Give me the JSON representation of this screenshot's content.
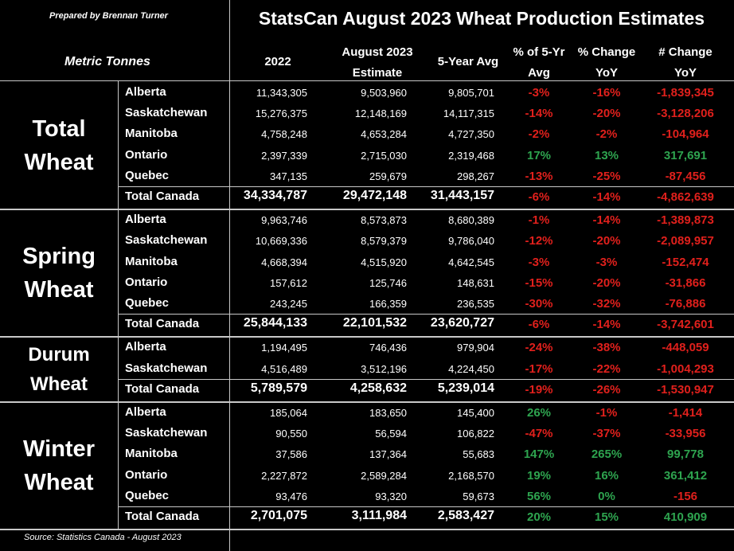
{
  "header": {
    "prepared_by": "Prepared by Brennan Turner",
    "title": "StatsCan August 2023 Wheat Production Estimates",
    "units": "Metric Tonnes",
    "columns": [
      {
        "key": "y2022",
        "lines": [
          "2022"
        ]
      },
      {
        "key": "aug2023",
        "lines": [
          "August 2023",
          "Estimate"
        ]
      },
      {
        "key": "avg5",
        "lines": [
          "5-Year Avg"
        ]
      },
      {
        "key": "pct5",
        "lines": [
          "% of 5-Yr",
          "Avg"
        ]
      },
      {
        "key": "pctyoy",
        "lines": [
          "% Change",
          "YoY"
        ]
      },
      {
        "key": "chgyoy",
        "lines": [
          "# Change",
          "YoY"
        ]
      }
    ]
  },
  "footer": {
    "source": "Source: Statistics Canada - August 2023"
  },
  "chart_data": {
    "type": "table",
    "title": "StatsCan August 2023 Wheat Production Estimates",
    "columns": [
      "2022",
      "August 2023 Estimate",
      "5-Year Avg",
      "% of 5-Yr Avg",
      "% Change YoY",
      "# Change YoY"
    ],
    "groups": [
      {
        "name_lines": [
          "Total",
          "Wheat"
        ],
        "rows": [
          {
            "province": "Alberta",
            "y2022": "11,343,305",
            "aug2023": "9,503,960",
            "avg5": "9,805,701",
            "pct5": "-3%",
            "pctyoy": "-16%",
            "chgyoy": "-1,839,345"
          },
          {
            "province": "Saskatchewan",
            "y2022": "15,276,375",
            "aug2023": "12,148,169",
            "avg5": "14,117,315",
            "pct5": "-14%",
            "pctyoy": "-20%",
            "chgyoy": "-3,128,206"
          },
          {
            "province": "Manitoba",
            "y2022": "4,758,248",
            "aug2023": "4,653,284",
            "avg5": "4,727,350",
            "pct5": "-2%",
            "pctyoy": "-2%",
            "chgyoy": "-104,964"
          },
          {
            "province": "Ontario",
            "y2022": "2,397,339",
            "aug2023": "2,715,030",
            "avg5": "2,319,468",
            "pct5": "17%",
            "pctyoy": "13%",
            "chgyoy": "317,691"
          },
          {
            "province": "Quebec",
            "y2022": "347,135",
            "aug2023": "259,679",
            "avg5": "298,267",
            "pct5": "-13%",
            "pctyoy": "-25%",
            "chgyoy": "-87,456"
          }
        ],
        "total": {
          "province": "Total Canada",
          "y2022": "34,334,787",
          "aug2023": "29,472,148",
          "avg5": "31,443,157",
          "pct5": "-6%",
          "pctyoy": "-14%",
          "chgyoy": "-4,862,639"
        }
      },
      {
        "name_lines": [
          "Spring",
          "Wheat"
        ],
        "rows": [
          {
            "province": "Alberta",
            "y2022": "9,963,746",
            "aug2023": "8,573,873",
            "avg5": "8,680,389",
            "pct5": "-1%",
            "pctyoy": "-14%",
            "chgyoy": "-1,389,873"
          },
          {
            "province": "Saskatchewan",
            "y2022": "10,669,336",
            "aug2023": "8,579,379",
            "avg5": "9,786,040",
            "pct5": "-12%",
            "pctyoy": "-20%",
            "chgyoy": "-2,089,957"
          },
          {
            "province": "Manitoba",
            "y2022": "4,668,394",
            "aug2023": "4,515,920",
            "avg5": "4,642,545",
            "pct5": "-3%",
            "pctyoy": "-3%",
            "chgyoy": "-152,474"
          },
          {
            "province": "Ontario",
            "y2022": "157,612",
            "aug2023": "125,746",
            "avg5": "148,631",
            "pct5": "-15%",
            "pctyoy": "-20%",
            "chgyoy": "-31,866"
          },
          {
            "province": "Quebec",
            "y2022": "243,245",
            "aug2023": "166,359",
            "avg5": "236,535",
            "pct5": "-30%",
            "pctyoy": "-32%",
            "chgyoy": "-76,886"
          }
        ],
        "total": {
          "province": "Total Canada",
          "y2022": "25,844,133",
          "aug2023": "22,101,532",
          "avg5": "23,620,727",
          "pct5": "-6%",
          "pctyoy": "-14%",
          "chgyoy": "-3,742,601"
        }
      },
      {
        "name_lines": [
          "Durum",
          "Wheat"
        ],
        "rows": [
          {
            "province": "Alberta",
            "y2022": "1,194,495",
            "aug2023": "746,436",
            "avg5": "979,904",
            "pct5": "-24%",
            "pctyoy": "-38%",
            "chgyoy": "-448,059"
          },
          {
            "province": "Saskatchewan",
            "y2022": "4,516,489",
            "aug2023": "3,512,196",
            "avg5": "4,224,450",
            "pct5": "-17%",
            "pctyoy": "-22%",
            "chgyoy": "-1,004,293"
          }
        ],
        "total": {
          "province": "Total Canada",
          "y2022": "5,789,579",
          "aug2023": "4,258,632",
          "avg5": "5,239,014",
          "pct5": "-19%",
          "pctyoy": "-26%",
          "chgyoy": "-1,530,947"
        }
      },
      {
        "name_lines": [
          "Winter",
          "Wheat"
        ],
        "rows": [
          {
            "province": "Alberta",
            "y2022": "185,064",
            "aug2023": "183,650",
            "avg5": "145,400",
            "pct5": "26%",
            "pctyoy": "-1%",
            "chgyoy": "-1,414"
          },
          {
            "province": "Saskatchewan",
            "y2022": "90,550",
            "aug2023": "56,594",
            "avg5": "106,822",
            "pct5": "-47%",
            "pctyoy": "-37%",
            "chgyoy": "-33,956"
          },
          {
            "province": "Manitoba",
            "y2022": "37,586",
            "aug2023": "137,364",
            "avg5": "55,683",
            "pct5": "147%",
            "pctyoy": "265%",
            "chgyoy": "99,778"
          },
          {
            "province": "Ontario",
            "y2022": "2,227,872",
            "aug2023": "2,589,284",
            "avg5": "2,168,570",
            "pct5": "19%",
            "pctyoy": "16%",
            "chgyoy": "361,412"
          },
          {
            "province": "Quebec",
            "y2022": "93,476",
            "aug2023": "93,320",
            "avg5": "59,673",
            "pct5": "56%",
            "pctyoy": "0%",
            "chgyoy": "-156"
          }
        ],
        "total": {
          "province": "Total Canada",
          "y2022": "2,701,075",
          "aug2023": "3,111,984",
          "avg5": "2,583,427",
          "pct5": "20%",
          "pctyoy": "15%",
          "chgyoy": "410,909"
        }
      }
    ]
  },
  "colors": {
    "negative": "#e0201c",
    "positive": "#2ea44f",
    "background": "#000000",
    "text": "#ffffff",
    "grid": "#c8c8c8"
  }
}
